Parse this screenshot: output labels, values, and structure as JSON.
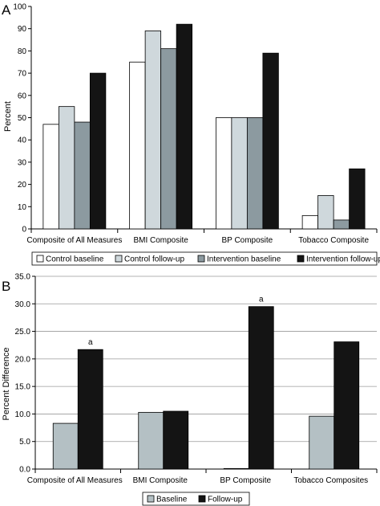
{
  "chart_data": [
    {
      "type": "bar",
      "panel_label": "A",
      "ylabel": "Percent",
      "ylim": [
        0,
        100
      ],
      "yticks": [
        0,
        10,
        20,
        30,
        40,
        50,
        60,
        70,
        80,
        90,
        100
      ],
      "ytick_labels": [
        "0",
        "10",
        "20",
        "30",
        "40",
        "50",
        "60",
        "70",
        "80",
        "90",
        "100"
      ],
      "categories": [
        "Composite of All Measures",
        "BMI Composite",
        "BP Composite",
        "Tobacco Composite"
      ],
      "series": [
        {
          "name": "Control baseline",
          "color": "#ffffff",
          "values": [
            47,
            75,
            50,
            6
          ]
        },
        {
          "name": "Control follow-up",
          "color": "#cfd8dc",
          "values": [
            55,
            89,
            50,
            15
          ]
        },
        {
          "name": "Intervention baseline",
          "color": "#8c9aa0",
          "values": [
            48,
            81,
            50,
            4
          ]
        },
        {
          "name": "Intervention follow-up",
          "color": "#141414",
          "values": [
            70,
            92,
            79,
            27
          ]
        }
      ],
      "grid": false,
      "legend": "bottom"
    },
    {
      "type": "bar",
      "panel_label": "B",
      "ylabel": "Percent Difference",
      "ylim": [
        0,
        35
      ],
      "yticks": [
        0,
        5,
        10,
        15,
        20,
        25,
        30,
        35
      ],
      "ytick_labels": [
        "0.0",
        "5.0",
        "10.0",
        "15.0",
        "20.0",
        "25.0",
        "30.0",
        "35.0"
      ],
      "categories": [
        "Composite of All Measures",
        "BMI Composite",
        "BP Composite",
        "Tobacco Composites"
      ],
      "series": [
        {
          "name": "Baseline",
          "color": "#b4c0c4",
          "values": [
            8.3,
            10.3,
            0.1,
            9.6
          ]
        },
        {
          "name": "Follow-up",
          "color": "#141414",
          "values": [
            21.7,
            10.5,
            29.5,
            23.1
          ]
        }
      ],
      "annotations": [
        {
          "category": "Composite of All Measures",
          "series": "Follow-up",
          "text": "a"
        },
        {
          "category": "BP Composite",
          "series": "Follow-up",
          "text": "a"
        }
      ],
      "grid": true,
      "legend": "bottom"
    }
  ]
}
